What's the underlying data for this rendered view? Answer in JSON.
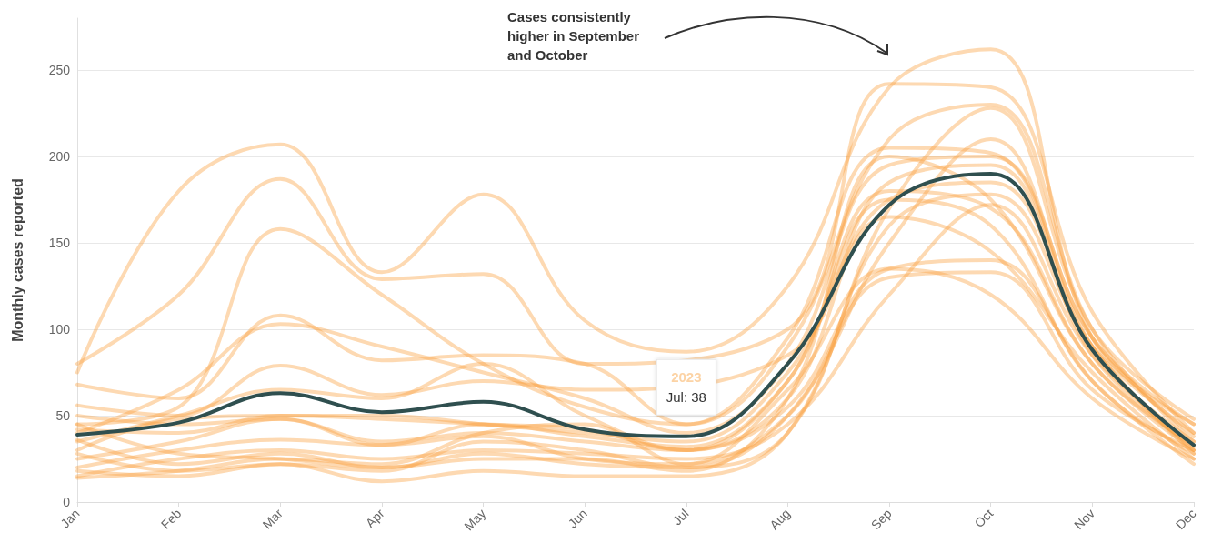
{
  "chart_data": {
    "type": "line",
    "ylabel": "Monthly cases reported",
    "categories": [
      "Jan",
      "Feb",
      "Mar",
      "Apr",
      "May",
      "Jun",
      "Jul",
      "Aug",
      "Sep",
      "Oct",
      "Nov",
      "Dec"
    ],
    "ylim": [
      0,
      280
    ],
    "yticks": [
      0,
      50,
      100,
      150,
      200,
      250
    ],
    "grid": "y",
    "legend": false,
    "marker": "none",
    "line_style": "solid",
    "annotations": [
      "Cases consistently higher in September and October",
      {
        "text": "Jul: 38",
        "x": "Jul",
        "y": 38
      }
    ],
    "series": [
      {
        "color": "#f9a03f",
        "values": [
          75,
          180,
          207,
          133,
          178,
          105,
          87,
          125,
          240,
          262,
          95,
          45
        ]
      },
      {
        "color": "#f9a03f",
        "values": [
          80,
          120,
          187,
          129,
          132,
          80,
          null,
          100,
          242,
          240,
          110,
          40
        ]
      },
      {
        "color": "#f9a03f",
        "values": [
          45,
          55,
          158,
          120,
          80,
          55,
          45,
          90,
          210,
          230,
          100,
          35
        ]
      },
      {
        "color": "#f9a03f",
        "values": [
          68,
          60,
          108,
          82,
          85,
          80,
          45,
          95,
          205,
          202,
          90,
          30
        ]
      },
      {
        "color": "#f9a03f",
        "values": [
          40,
          65,
          103,
          90,
          75,
          60,
          40,
          80,
          195,
          200,
          95,
          38
        ]
      },
      {
        "color": "#f9a03f",
        "values": [
          56,
          50,
          79,
          62,
          70,
          65,
          null,
          85,
          185,
          195,
          85,
          32
        ]
      },
      {
        "color": "#f9a03f",
        "values": [
          35,
          50,
          65,
          60,
          80,
          50,
          30,
          70,
          180,
          170,
          80,
          30
        ]
      },
      {
        "color": "#f9a03f",
        "values": [
          30,
          48,
          50,
          50,
          45,
          40,
          35,
          75,
          175,
          185,
          90,
          28
        ]
      },
      {
        "color": "#f9a03f",
        "values": [
          42,
          40,
          50,
          48,
          45,
          42,
          30,
          60,
          165,
          145,
          75,
          25
        ]
      },
      {
        "color": "#f9a03f",
        "values": [
          25,
          35,
          48,
          35,
          40,
          35,
          30,
          55,
          135,
          140,
          70,
          22
        ]
      },
      {
        "color": "#f9a03f",
        "values": [
          20,
          30,
          36,
          33,
          38,
          25,
          22,
          50,
          130,
          133,
          65,
          30
        ]
      },
      {
        "color": "#f9a03f",
        "values": [
          15,
          25,
          30,
          25,
          30,
          28,
          25,
          45,
          120,
          172,
          85,
          35
        ]
      },
      {
        "color": "#f9a03f",
        "values": [
          36,
          22,
          28,
          20,
          28,
          22,
          20,
          40,
          160,
          178,
          90,
          40
        ]
      },
      {
        "color": "#f9a03f",
        "values": [
          28,
          18,
          22,
          18,
          35,
          30,
          20,
          50,
          150,
          210,
          95,
          45
        ]
      },
      {
        "color": "#f9a03f",
        "values": [
          18,
          15,
          22,
          12,
          18,
          15,
          15,
          40,
          170,
          228,
          100,
          48
        ]
      },
      {
        "color": "#f9a03f",
        "values": [
          45,
          28,
          25,
          20,
          25,
          25,
          18,
          60,
          200,
          175,
          80,
          33
        ]
      },
      {
        "color": "#f9a03f",
        "values": [
          14,
          18,
          25,
          22,
          40,
          45,
          22,
          65,
          135,
          120,
          60,
          25
        ]
      },
      {
        "color": "#f9a03f",
        "values": [
          50,
          45,
          48,
          33,
          45,
          38,
          32,
          70,
          175,
          160,
          70,
          28
        ]
      },
      {
        "name": "2023",
        "color": "#2f4f4f",
        "values": [
          39,
          46,
          63,
          52,
          58,
          42,
          38,
          80,
          172,
          190,
          88,
          33
        ]
      }
    ]
  }
}
